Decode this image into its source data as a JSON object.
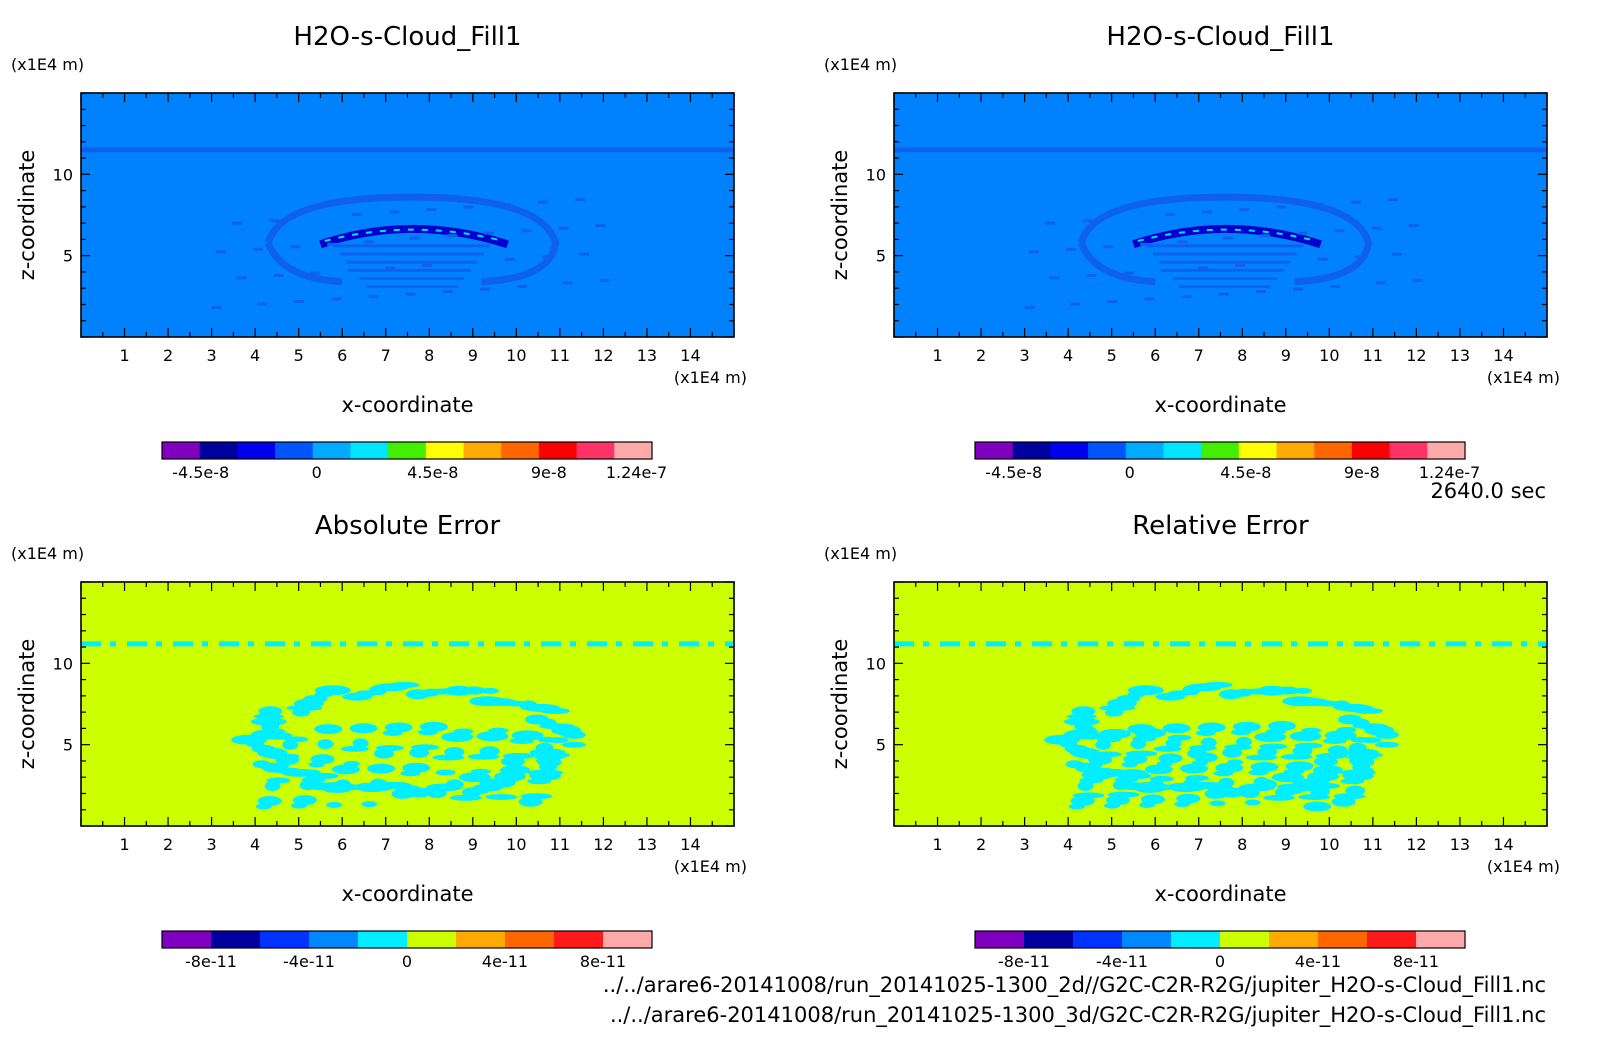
{
  "time_label": "2640.0 sec",
  "files": [
    "../../arare6-20141008/run_20141025-1300_2d//G2C-C2R-R2G/jupiter_H2O-s-Cloud_Fill1.nc",
    "../../arare6-20141008/run_20141025-1300_3d/G2C-C2R-R2G/jupiter_H2O-s-Cloud_Fill1.nc"
  ],
  "chart_data": [
    {
      "type": "heatmap",
      "title": "H2O-s-Cloud_Fill1",
      "xlabel": "x-coordinate",
      "ylabel": "z-coordinate",
      "x_unit": "(x1E4 m)",
      "y_unit": "(x1E4 m)",
      "xlim": [
        0,
        15
      ],
      "ylim": [
        0,
        15
      ],
      "x_ticks": [
        1,
        2,
        3,
        4,
        5,
        6,
        7,
        8,
        9,
        10,
        11,
        12,
        13,
        14
      ],
      "y_ticks": [
        5,
        10
      ],
      "colorbar": {
        "colors": [
          "#7f00bf",
          "#00009f",
          "#0000ee",
          "#0055ff",
          "#00aaff",
          "#00e5ff",
          "#44ee00",
          "#ffff00",
          "#ffaa00",
          "#ff6600",
          "#ff0000",
          "#ff3366",
          "#ffaaaa"
        ],
        "tick_labels": [
          "-4.5e-8",
          "0",
          "4.5e-8",
          "9e-8",
          "1.24e-7"
        ]
      },
      "background_color": "#0082ff",
      "feature_color": "#1060ee"
    },
    {
      "type": "heatmap",
      "title": "H2O-s-Cloud_Fill1",
      "xlabel": "x-coordinate",
      "ylabel": "z-coordinate",
      "x_unit": "(x1E4 m)",
      "y_unit": "(x1E4 m)",
      "xlim": [
        0,
        15
      ],
      "ylim": [
        0,
        15
      ],
      "x_ticks": [
        1,
        2,
        3,
        4,
        5,
        6,
        7,
        8,
        9,
        10,
        11,
        12,
        13,
        14
      ],
      "y_ticks": [
        5,
        10
      ],
      "colorbar": {
        "colors": [
          "#7f00bf",
          "#00009f",
          "#0000ee",
          "#0055ff",
          "#00aaff",
          "#00e5ff",
          "#44ee00",
          "#ffff00",
          "#ffaa00",
          "#ff6600",
          "#ff0000",
          "#ff3366",
          "#ffaaaa"
        ],
        "tick_labels": [
          "-4.5e-8",
          "0",
          "4.5e-8",
          "9e-8",
          "1.24e-7"
        ]
      },
      "background_color": "#0082ff",
      "feature_color": "#1060ee"
    },
    {
      "type": "heatmap",
      "title": "Absolute Error",
      "xlabel": "x-coordinate",
      "ylabel": "z-coordinate",
      "x_unit": "(x1E4 m)",
      "y_unit": "(x1E4 m)",
      "xlim": [
        0,
        15
      ],
      "ylim": [
        0,
        15
      ],
      "x_ticks": [
        1,
        2,
        3,
        4,
        5,
        6,
        7,
        8,
        9,
        10,
        11,
        12,
        13,
        14
      ],
      "y_ticks": [
        5,
        10
      ],
      "colorbar": {
        "colors": [
          "#7f00bf",
          "#00009f",
          "#0033ff",
          "#0088ff",
          "#00eeff",
          "#ccff00",
          "#ffaa00",
          "#ff6600",
          "#ff1a1a",
          "#ffaaaa"
        ],
        "tick_labels": [
          "-8e-11",
          "-4e-11",
          "0",
          "4e-11",
          "8e-11"
        ]
      },
      "background_color": "#ccff00",
      "feature_color": "#00eeff"
    },
    {
      "type": "heatmap",
      "title": "Relative Error",
      "xlabel": "x-coordinate",
      "ylabel": "z-coordinate",
      "x_unit": "(x1E4 m)",
      "y_unit": "(x1E4 m)",
      "xlim": [
        0,
        15
      ],
      "ylim": [
        0,
        15
      ],
      "x_ticks": [
        1,
        2,
        3,
        4,
        5,
        6,
        7,
        8,
        9,
        10,
        11,
        12,
        13,
        14
      ],
      "y_ticks": [
        5,
        10
      ],
      "colorbar": {
        "colors": [
          "#7f00bf",
          "#00009f",
          "#0033ff",
          "#0088ff",
          "#00eeff",
          "#ccff00",
          "#ffaa00",
          "#ff6600",
          "#ff1a1a",
          "#ffaaaa"
        ],
        "tick_labels": [
          "-8e-11",
          "-4e-11",
          "0",
          "4e-11",
          "8e-11"
        ]
      },
      "background_color": "#ccff00",
      "feature_color": "#00eeff"
    }
  ]
}
